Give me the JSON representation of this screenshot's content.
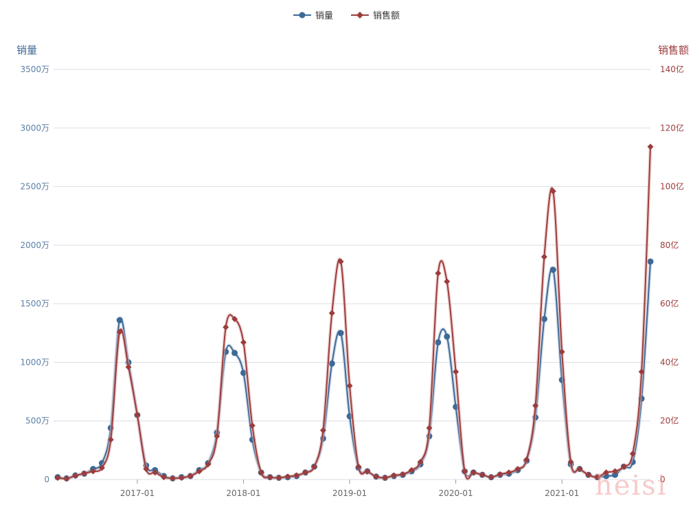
{
  "legend": {
    "sales_volume": "销量",
    "sales_revenue": "销售额"
  },
  "axis_names": {
    "left": "销量",
    "right": "销售额"
  },
  "watermark": "heisi",
  "colors": {
    "volume": "#3d6a96",
    "revenue": "#9c3c3c",
    "grid": "#d9dde5",
    "axis_text_left": "#5b7fa5",
    "axis_text_right": "#9c3c3c",
    "tick_text": "#666666"
  },
  "chart_data": {
    "type": "line",
    "x_labels": [
      "2017-01",
      "2018-01",
      "2019-01",
      "2020-01",
      "2021-01"
    ],
    "x_start": "2016-04",
    "left_axis": {
      "ylim": [
        0,
        3500
      ],
      "ticks": [
        "0",
        "500万",
        "1000万",
        "1500万",
        "2000万",
        "2500万",
        "3000万",
        "3500万"
      ],
      "unit": "万"
    },
    "right_axis": {
      "ylim": [
        0,
        140
      ],
      "ticks": [
        "0",
        "20亿",
        "40亿",
        "60亿",
        "80亿",
        "100亿",
        "120亿",
        "140亿"
      ],
      "unit": "亿"
    },
    "series": [
      {
        "name": "销量",
        "axis": "left",
        "values": [
          20,
          10,
          35,
          50,
          90,
          140,
          440,
          1360,
          1000,
          550,
          120,
          80,
          30,
          10,
          20,
          30,
          80,
          140,
          400,
          1090,
          1080,
          910,
          340,
          60,
          20,
          15,
          20,
          30,
          60,
          110,
          350,
          990,
          1250,
          540,
          100,
          70,
          25,
          15,
          30,
          40,
          70,
          130,
          370,
          1170,
          1220,
          620,
          70,
          60,
          40,
          20,
          40,
          50,
          80,
          160,
          530,
          1370,
          1790,
          850,
          130,
          90,
          40,
          20,
          30,
          40,
          110,
          150,
          690,
          1860
        ]
      },
      {
        "name": "销售额",
        "axis": "left_alt",
        "values": [
          0.6,
          0.3,
          1.3,
          2.1,
          2.8,
          4.0,
          13.6,
          50.4,
          38.4,
          22.0,
          3.6,
          2.4,
          0.8,
          0.4,
          0.6,
          1.2,
          2.8,
          5.2,
          14.8,
          52.0,
          54.8,
          46.8,
          18.4,
          2.4,
          0.8,
          0.6,
          1.0,
          1.4,
          2.4,
          4.4,
          16.8,
          56.8,
          74.4,
          32.0,
          4.4,
          2.8,
          1.0,
          0.6,
          1.4,
          1.8,
          3.2,
          6.0,
          17.6,
          70.4,
          67.6,
          36.8,
          2.8,
          2.4,
          1.6,
          0.8,
          1.8,
          2.4,
          3.6,
          6.8,
          25.2,
          76.0,
          98.4,
          43.6,
          6.0,
          3.6,
          1.6,
          0.8,
          2.4,
          2.8,
          4.4,
          8.8,
          36.8,
          113.6
        ]
      }
    ]
  }
}
